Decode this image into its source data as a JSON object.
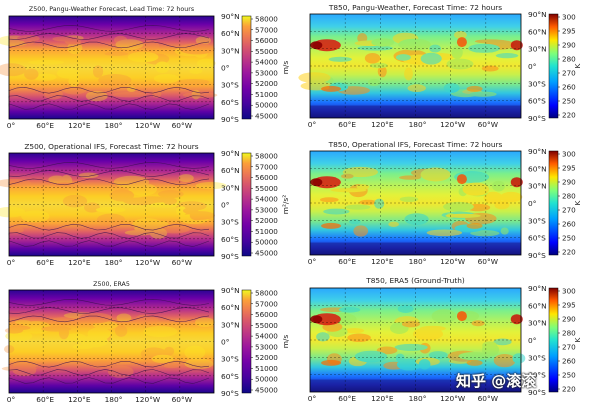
{
  "chart_data": [
    {
      "type": "heatmap",
      "field": "Z500",
      "title": "Z500, Pangu-Weather Forecast, Lead Time: 72 hours",
      "xticks": [
        "0°",
        "60°E",
        "120°E",
        "180°",
        "120°W",
        "60°W"
      ],
      "yticks": [
        "90°N",
        "60°N",
        "30°N",
        "0°",
        "30°S",
        "60°S",
        "90°S"
      ],
      "colorbar": {
        "ticks": [
          58000,
          57000,
          56000,
          55000,
          54000,
          53000,
          52000,
          51000,
          50000,
          45000
        ],
        "unit": "m/s",
        "vmin": 45000,
        "vmax": 58500,
        "colormap": "plasma"
      }
    },
    {
      "type": "heatmap",
      "field": "T850",
      "title": "T850, Pangu-Weather, Forecast Time: 72 hours",
      "xticks": [
        "0°",
        "60°E",
        "120°E",
        "180°",
        "120°W",
        "60°W"
      ],
      "yticks": [
        "90°N",
        "60°N",
        "30°N",
        "0°",
        "30°S",
        "60°S",
        "90°S"
      ],
      "colorbar": {
        "ticks": [
          300,
          295,
          290,
          280,
          270,
          260,
          250,
          220
        ],
        "unit": "K",
        "vmin": 220,
        "vmax": 305,
        "colormap": "jet"
      }
    },
    {
      "type": "heatmap",
      "field": "Z500",
      "title": "Z500, Operational IFS, Forecast Time: 72 hours",
      "xticks": [
        "0°",
        "60°E",
        "120°E",
        "180°",
        "120°W",
        "60°W"
      ],
      "yticks": [
        "90°N",
        "60°N",
        "30°N",
        "0°",
        "30°S",
        "60°S",
        "90°S"
      ],
      "colorbar": {
        "ticks": [
          58000,
          57000,
          56000,
          55000,
          54000,
          53000,
          52000,
          51000,
          50000,
          45000
        ],
        "unit": "m²/s²",
        "vmin": 45000,
        "vmax": 58500,
        "colormap": "plasma"
      }
    },
    {
      "type": "heatmap",
      "field": "T850",
      "title": "T850, Operational IFS, Forecast Time: 72 hours",
      "xticks": [
        "0°",
        "60°E",
        "120°E",
        "180°",
        "120°W",
        "60°W"
      ],
      "yticks": [
        "90°N",
        "60°N",
        "30°N",
        "0°",
        "30°S",
        "60°S",
        "90°S"
      ],
      "colorbar": {
        "ticks": [
          300,
          295,
          290,
          280,
          270,
          260,
          250,
          220
        ],
        "unit": "K",
        "vmin": 220,
        "vmax": 305,
        "colormap": "jet"
      }
    },
    {
      "type": "heatmap",
      "field": "Z500",
      "title": "Z500, ERA5",
      "xticks": [
        "0°",
        "60°E",
        "120°E",
        "180°",
        "120°W",
        "60°W"
      ],
      "yticks": [
        "90°N",
        "60°N",
        "30°N",
        "0°",
        "30°S",
        "60°S",
        "90°S"
      ],
      "colorbar": {
        "ticks": [
          58000,
          57000,
          56000,
          55000,
          54000,
          53000,
          52000,
          51000,
          50000,
          45000
        ],
        "unit": "m/s",
        "vmin": 45000,
        "vmax": 58500,
        "colormap": "plasma"
      }
    },
    {
      "type": "heatmap",
      "field": "T850",
      "title": "T850, ERA5 (Ground-Truth)",
      "xticks": [
        "0°",
        "60°E",
        "120°E",
        "180°",
        "120°W",
        "60°W"
      ],
      "yticks": [
        "90°N",
        "60°N",
        "30°N",
        "0°",
        "30°S",
        "60°S",
        "90°S"
      ],
      "colorbar": {
        "ticks": [
          300,
          295,
          290,
          280,
          270,
          260,
          250,
          220
        ],
        "unit": "K",
        "vmin": 220,
        "vmax": 305,
        "colormap": "jet"
      }
    }
  ],
  "watermark": "知乎 @滚滚"
}
